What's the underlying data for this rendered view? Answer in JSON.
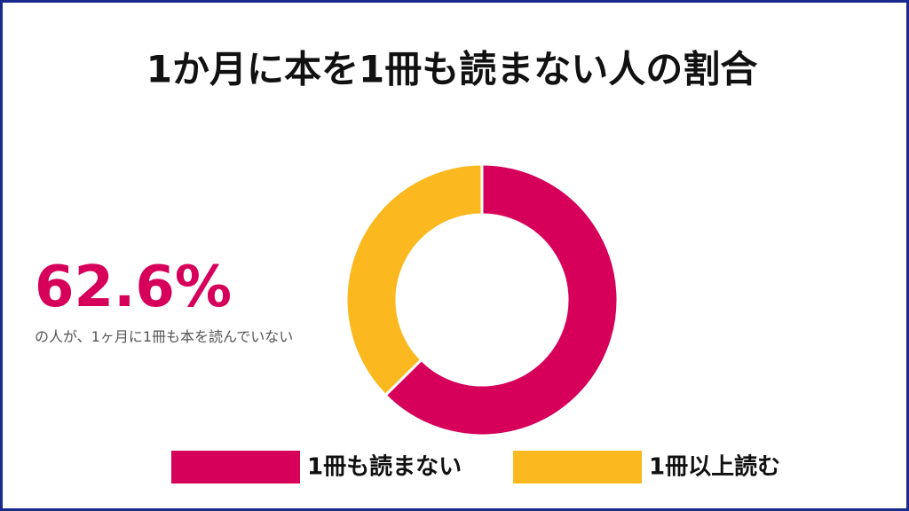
{
  "chart_data": {
    "type": "donut",
    "title": "1か月に本を1冊も読まない人の割合",
    "callout": "62.6%",
    "callout_text": "の人が、1ヶ月に1冊も本を読んでいない",
    "categories": [
      "1冊も読まない",
      "1冊以上読む"
    ],
    "values": [
      62.6,
      37.4
    ],
    "colors": [
      "#d6005b",
      "#fbb81f"
    ]
  }
}
